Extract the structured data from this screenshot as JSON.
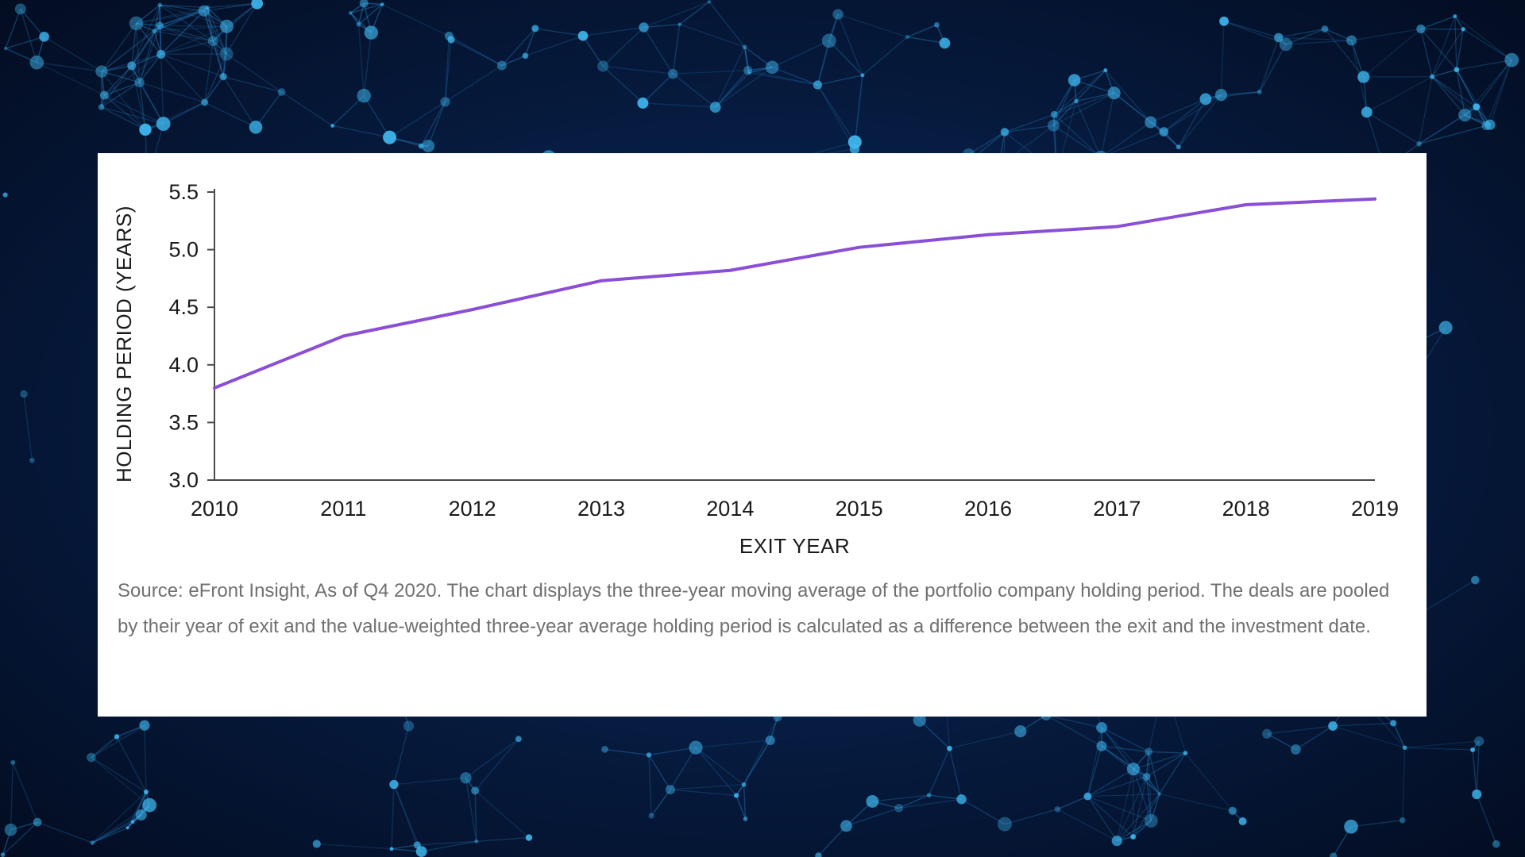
{
  "colors": {
    "line": "#8a4fd6",
    "axis": "#4a4a4a",
    "background_node": "#3fb8f0",
    "background_edge": "#2a8fd4"
  },
  "chart_data": {
    "type": "line",
    "title": "",
    "xlabel": "EXIT YEAR",
    "ylabel": "HOLDING PERIOD (YEARS)",
    "x": [
      2010,
      2011,
      2012,
      2013,
      2014,
      2015,
      2016,
      2017,
      2018,
      2019
    ],
    "series": [
      {
        "values": [
          3.8,
          4.25,
          4.48,
          4.73,
          4.82,
          5.02,
          5.13,
          5.2,
          5.39,
          5.44
        ]
      }
    ],
    "xlim": [
      2010,
      2019
    ],
    "ylim": [
      3.0,
      5.5
    ],
    "yticks": [
      "3.0",
      "3.5",
      "4.0",
      "4.5",
      "5.0",
      "5.5"
    ],
    "xticks": [
      "2010",
      "2011",
      "2012",
      "2013",
      "2014",
      "2015",
      "2016",
      "2017",
      "2018",
      "2019"
    ],
    "grid": false,
    "legend": "none"
  },
  "source_note": "Source: eFront Insight, As of Q4 2020. The chart displays the three-year moving average of the portfolio company holding period. The deals are pooled by their year of exit and the value-weighted three-year average holding period is calculated as a difference between the exit and the investment date."
}
